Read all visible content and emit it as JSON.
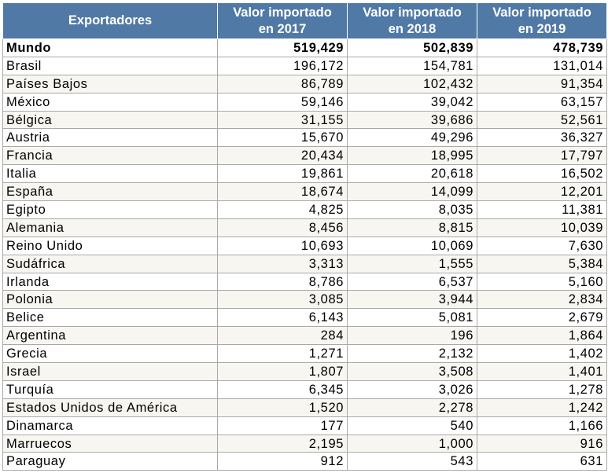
{
  "table": {
    "headers": [
      "Exportadores",
      "Valor importado en 2017",
      "Valor importado en 2018",
      "Valor importado en 2019"
    ],
    "header_lines": [
      [
        "Exportadores"
      ],
      [
        "Valor importado",
        "en 2017"
      ],
      [
        "Valor importado",
        "en 2018"
      ],
      [
        "Valor importado",
        "en 2019"
      ]
    ],
    "rows": [
      [
        "Mundo",
        "519,429",
        "502,839",
        "478,739"
      ],
      [
        "Brasil",
        "196,172",
        "154,781",
        "131,014"
      ],
      [
        "Países Bajos",
        "86,789",
        "102,432",
        "91,354"
      ],
      [
        "México",
        "59,146",
        "39,042",
        "63,157"
      ],
      [
        "Bélgica",
        "31,155",
        "39,686",
        "52,561"
      ],
      [
        "Austria",
        "15,670",
        "49,296",
        "36,327"
      ],
      [
        "Francia",
        "20,434",
        "18,995",
        "17,797"
      ],
      [
        "Italia",
        "19,861",
        "20,618",
        "16,502"
      ],
      [
        "España",
        "18,674",
        "14,099",
        "12,201"
      ],
      [
        "Egipto",
        "4,825",
        "8,035",
        "11,381"
      ],
      [
        "Alemania",
        "8,456",
        "8,815",
        "10,039"
      ],
      [
        "Reino Unido",
        "10,693",
        "10,069",
        "7,630"
      ],
      [
        "Sudáfrica",
        "3,313",
        "1,555",
        "5,384"
      ],
      [
        "Irlanda",
        "8,786",
        "6,537",
        "5,160"
      ],
      [
        "Polonia",
        "3,085",
        "3,944",
        "2,834"
      ],
      [
        "Belice",
        "6,143",
        "5,081",
        "2,679"
      ],
      [
        "Argentina",
        "284",
        "196",
        "1,864"
      ],
      [
        "Grecia",
        "1,271",
        "2,132",
        "1,402"
      ],
      [
        "Israel",
        "1,807",
        "3,508",
        "1,401"
      ],
      [
        "Turquía",
        "6,345",
        "3,026",
        "1,278"
      ],
      [
        "Estados Unidos de América",
        "1,520",
        "2,278",
        "1,242"
      ],
      [
        "Dinamarca",
        "177",
        "540",
        "1,166"
      ],
      [
        "Marruecos",
        "2,195",
        "1,000",
        "916"
      ],
      [
        "Paraguay",
        "912",
        "543",
        "631"
      ]
    ]
  },
  "colors": {
    "header_bg": "#5079a5",
    "header_text": "#ffffff",
    "grid": "#a9a9a9",
    "alt_row": "#f8f6f0"
  }
}
